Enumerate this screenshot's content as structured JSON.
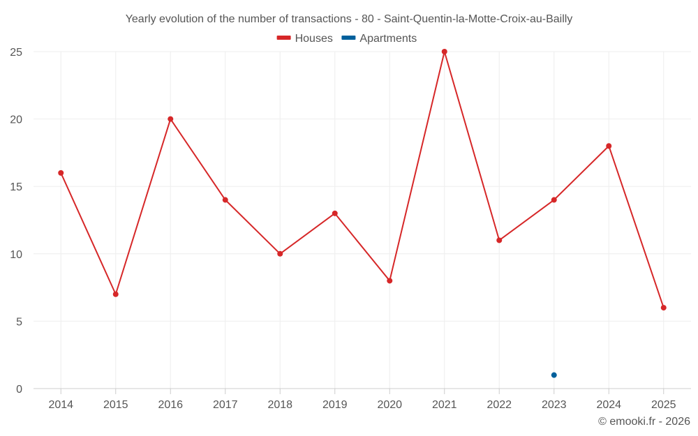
{
  "chart_data": {
    "type": "line",
    "title": "Yearly evolution of the number of transactions - 80 - Saint-Quentin-la-Motte-Croix-au-Bailly",
    "categories": [
      "2014",
      "2015",
      "2016",
      "2017",
      "2018",
      "2019",
      "2020",
      "2021",
      "2022",
      "2023",
      "2024",
      "2025"
    ],
    "series": [
      {
        "name": "Houses",
        "color": "#d62728",
        "values": [
          16,
          7,
          20,
          14,
          10,
          13,
          8,
          25,
          11,
          14,
          18,
          6
        ]
      },
      {
        "name": "Apartments",
        "color": "#00609c",
        "values": [
          null,
          null,
          null,
          null,
          null,
          null,
          null,
          null,
          null,
          1,
          null,
          null
        ]
      }
    ],
    "xlabel": "",
    "ylabel": "",
    "ylim": [
      0,
      25
    ],
    "yticks": [
      "0",
      "5",
      "10",
      "15",
      "20",
      "25"
    ],
    "grid": true,
    "legend_position": "top-center"
  },
  "credit": "© emooki.fr - 2026"
}
